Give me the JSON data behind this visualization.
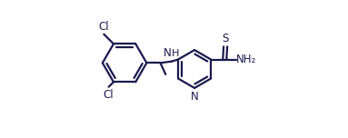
{
  "bg_color": "#ffffff",
  "line_color": "#1a1a4e",
  "line_width": 1.6,
  "figsize": [
    3.83,
    1.52
  ],
  "dpi": 100,
  "xlim": [
    0.0,
    1.0
  ],
  "ylim": [
    0.05,
    0.95
  ]
}
